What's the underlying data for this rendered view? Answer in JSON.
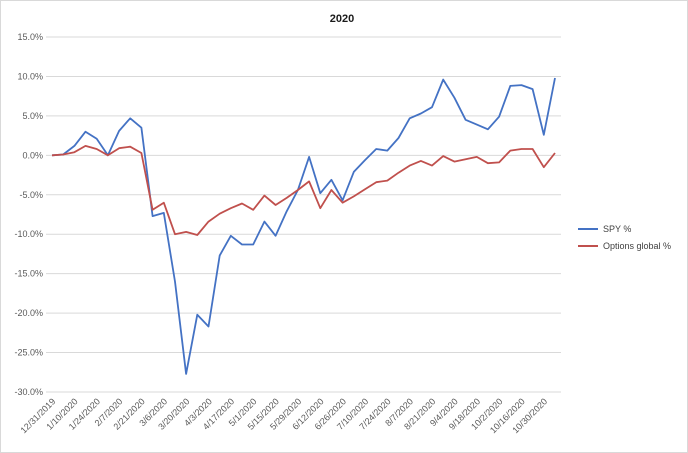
{
  "chart_data": {
    "type": "line",
    "title": "2020",
    "xlabel": "",
    "ylabel": "",
    "ylim": [
      -30,
      15
    ],
    "grid": true,
    "legend_position": "right",
    "yticks": [
      "15.0%",
      "10.0%",
      "5.0%",
      "0.0%",
      "-5.0%",
      "-10.0%",
      "-15.0%",
      "-20.0%",
      "-25.0%",
      "-30.0%"
    ],
    "xtick_labels": [
      "12/31/2019",
      "1/10/2020",
      "1/24/2020",
      "2/7/2020",
      "2/21/2020",
      "3/6/2020",
      "3/20/2020",
      "4/3/2020",
      "4/17/2020",
      "5/1/2020",
      "5/15/2020",
      "5/29/2020",
      "6/12/2020",
      "6/26/2020",
      "7/10/2020",
      "7/24/2020",
      "8/7/2020",
      "8/21/2020",
      "9/4/2020",
      "9/18/2020",
      "10/2/2020",
      "10/16/2020",
      "10/30/2020"
    ],
    "series": [
      {
        "name": "SPY %",
        "color": "#4472c4",
        "values": [
          0.0,
          0.1,
          1.2,
          3.0,
          2.1,
          0.0,
          3.1,
          4.7,
          3.5,
          -7.7,
          -7.3,
          -16.0,
          -27.7,
          -20.2,
          -21.7,
          -12.7,
          -10.2,
          -11.3,
          -11.3,
          -8.4,
          -10.2,
          -7.1,
          -4.4,
          -0.2,
          -4.8,
          -3.1,
          -5.7,
          -2.1,
          -0.6,
          0.8,
          0.6,
          2.2,
          4.7,
          5.3,
          6.1,
          9.6,
          7.3,
          4.5,
          3.9,
          3.3,
          4.9,
          8.8,
          8.9,
          8.4,
          2.6,
          9.8
        ],
        "dates": [
          "12/31/2019",
          "",
          "1/10/2020",
          "",
          "1/24/2020",
          "",
          "2/7/2020",
          "",
          "2/21/2020",
          "",
          "3/6/2020",
          "",
          "3/20/2020",
          "",
          "4/3/2020",
          "",
          "4/17/2020",
          "",
          "5/1/2020",
          "",
          "5/15/2020",
          "",
          "5/29/2020",
          "",
          "6/12/2020",
          "",
          "6/26/2020",
          "",
          "7/10/2020",
          "",
          "7/24/2020",
          "",
          "8/7/2020",
          "",
          "8/21/2020",
          "",
          "9/4/2020",
          "",
          "9/18/2020",
          "",
          "10/2/2020",
          "",
          "10/16/2020",
          "",
          "10/30/2020",
          ""
        ]
      },
      {
        "name": "Options global %",
        "color": "#c0504d",
        "values": [
          0.0,
          0.1,
          0.4,
          1.2,
          0.8,
          0.0,
          0.9,
          1.1,
          0.3,
          -6.9,
          -6.0,
          -10.0,
          -9.7,
          -10.1,
          -8.4,
          -7.4,
          -6.7,
          -6.1,
          -6.9,
          -5.1,
          -6.3,
          -5.4,
          -4.4,
          -3.3,
          -6.7,
          -4.4,
          -6.0,
          -5.2,
          -4.3,
          -3.4,
          -3.2,
          -2.2,
          -1.3,
          -0.7,
          -1.3,
          -0.1,
          -0.8,
          -0.5,
          -0.2,
          -1.0,
          -0.9,
          0.6,
          0.8,
          0.8,
          -1.5,
          0.3
        ]
      }
    ]
  }
}
